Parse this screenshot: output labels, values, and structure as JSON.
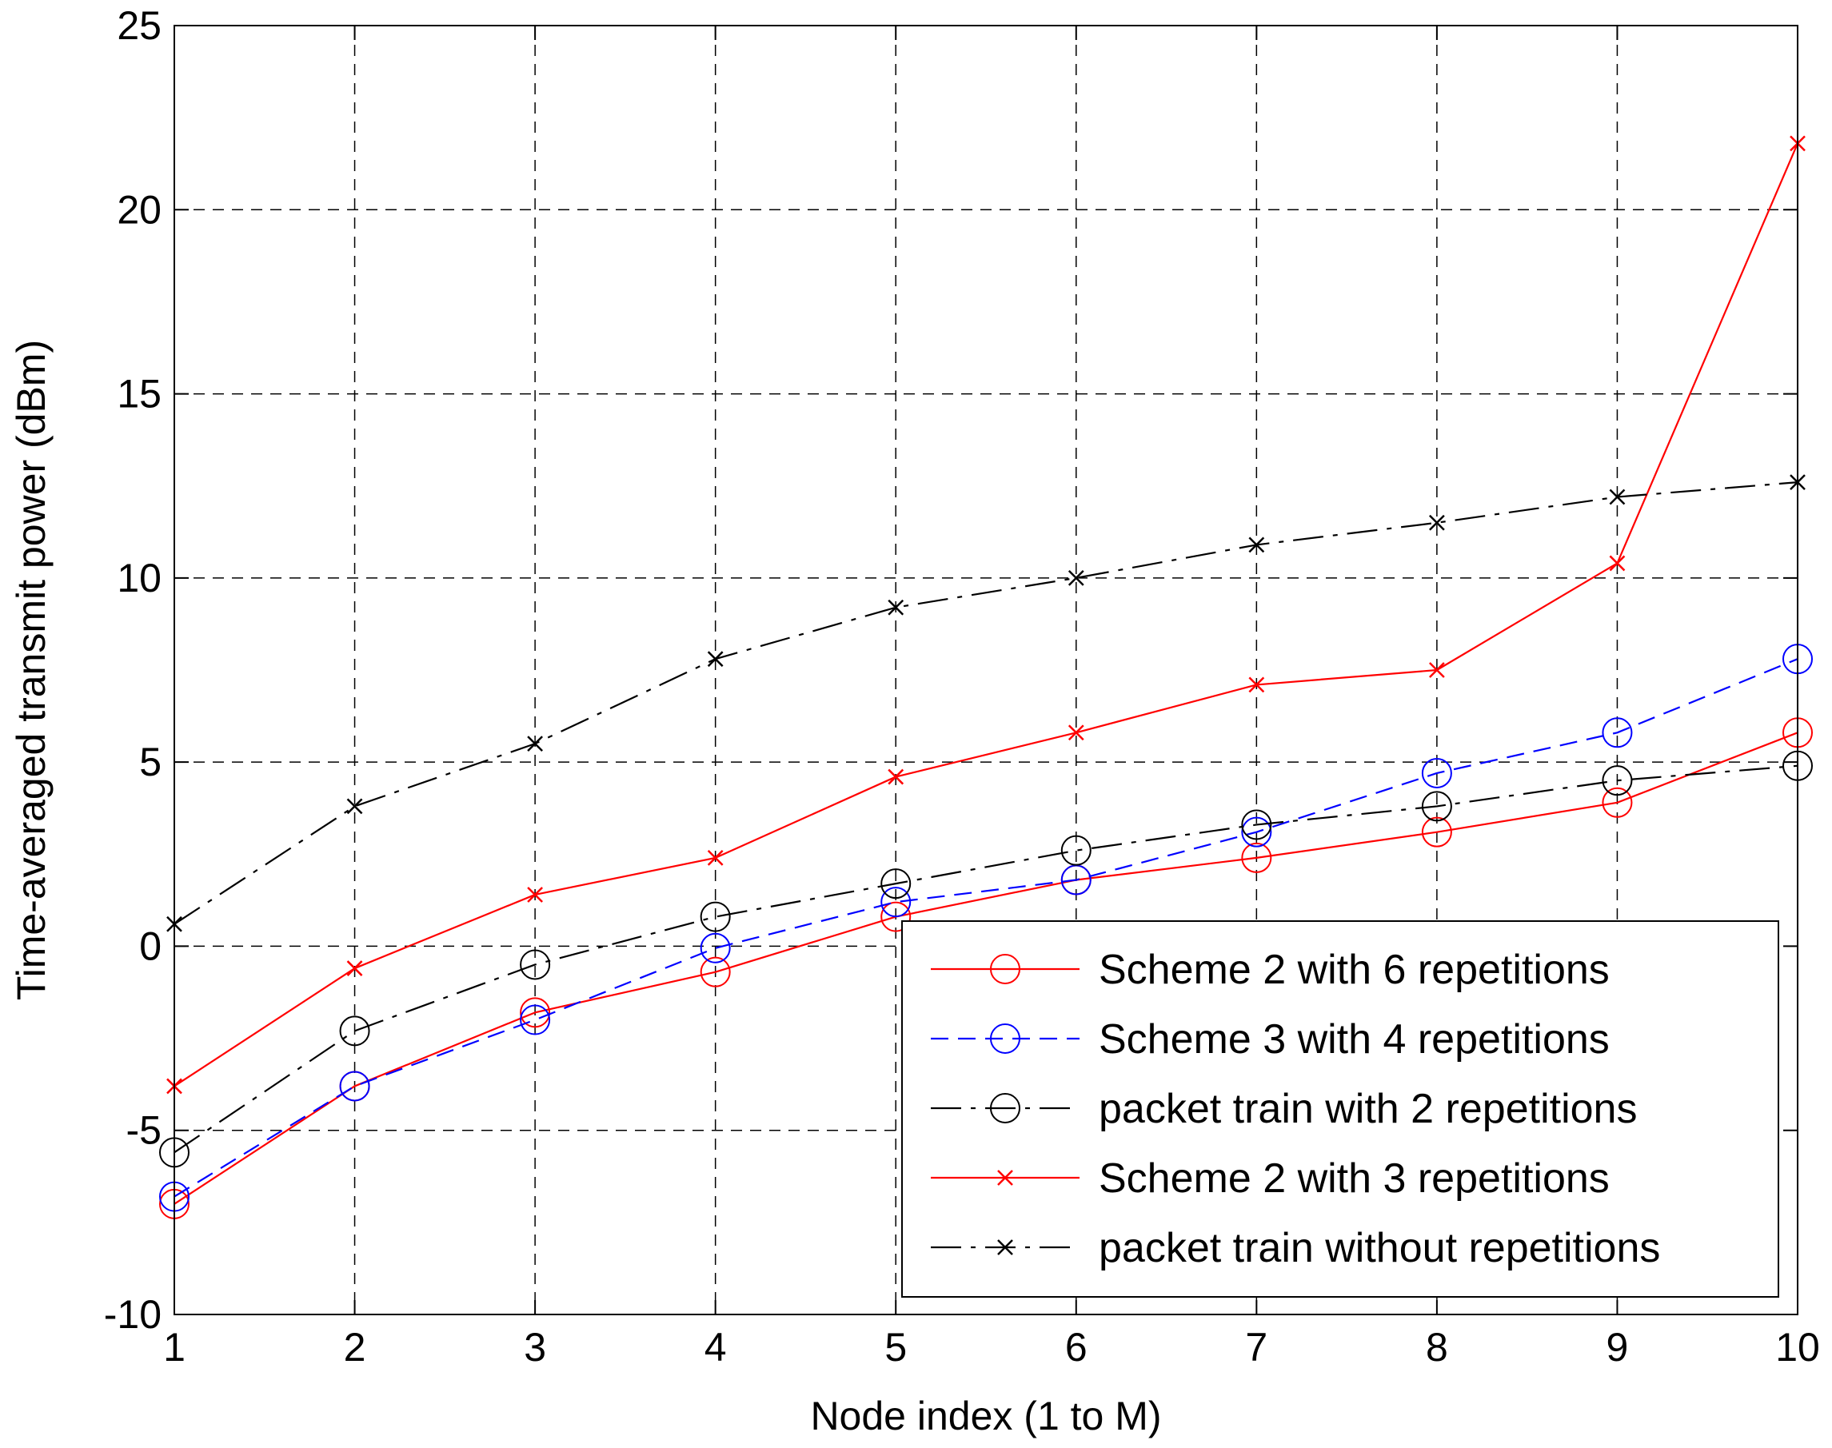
{
  "chart_data": {
    "type": "line",
    "title": "",
    "xlabel": "Node index (1 to M)",
    "ylabel": "Time-averaged transmit power (dBm)",
    "xlim": [
      1,
      10
    ],
    "ylim": [
      -10,
      25
    ],
    "xticks": [
      1,
      2,
      3,
      4,
      5,
      6,
      7,
      8,
      9,
      10
    ],
    "yticks": [
      -10,
      -5,
      0,
      5,
      10,
      15,
      20,
      25
    ],
    "grid": true,
    "legend_position": "bottom-right",
    "x": [
      1,
      2,
      3,
      4,
      5,
      6,
      7,
      8,
      9,
      10
    ],
    "series": [
      {
        "name": "Scheme 2 with 6 repetitions",
        "color": "#ff0000",
        "dash": "solid",
        "marker": "circle",
        "values": [
          -7.0,
          -3.8,
          -1.8,
          -0.7,
          0.8,
          1.8,
          2.4,
          3.1,
          3.9,
          5.8
        ]
      },
      {
        "name": "Scheme 3 with 4 repetitions",
        "color": "#0000ff",
        "dash": "dashed",
        "marker": "circle",
        "values": [
          -6.8,
          -3.8,
          -2.0,
          -0.05,
          1.2,
          1.8,
          3.1,
          4.7,
          5.8,
          7.8
        ]
      },
      {
        "name": "packet train with 2 repetitions",
        "color": "#000000",
        "dash": "dashdot",
        "marker": "circle",
        "values": [
          -5.6,
          -2.3,
          -0.5,
          0.8,
          1.7,
          2.6,
          3.3,
          3.8,
          4.5,
          4.9
        ]
      },
      {
        "name": "Scheme 2 with 3 repetitions",
        "color": "#ff0000",
        "dash": "solid",
        "marker": "x",
        "values": [
          -3.8,
          -0.6,
          1.4,
          2.4,
          4.6,
          5.8,
          7.1,
          7.5,
          10.4,
          21.8
        ]
      },
      {
        "name": "packet train without repetitions",
        "color": "#000000",
        "dash": "dashdot",
        "marker": "x",
        "values": [
          0.6,
          3.8,
          5.5,
          7.8,
          9.2,
          10.0,
          10.9,
          11.5,
          12.2,
          12.6
        ]
      }
    ]
  }
}
